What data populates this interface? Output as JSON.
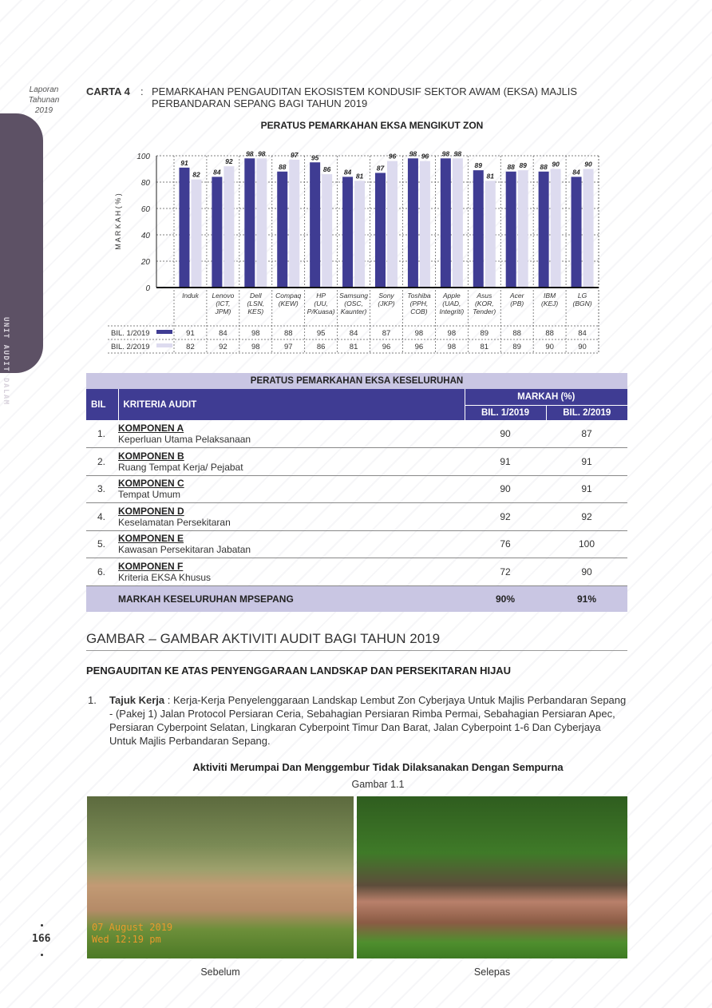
{
  "side": {
    "report_line1": "Laporan",
    "report_line2": "Tahunan",
    "report_year": "2019",
    "tab_label": "UNIT AUDIT DALAM",
    "page_number": "166"
  },
  "heading": {
    "label": "CARTA 4",
    "colon": ":",
    "text": "PEMARKAHAN PENGAUDITAN EKOSISTEM KONDUSIF SEKTOR AWAM (EKSA) MAJLIS PERBANDARAN SEPANG BAGI TAHUN 2019"
  },
  "chart_data": {
    "type": "bar",
    "title": "PERATUS PEMARKAHAN EKSA MENGIKUT ZON",
    "ylabel": "M A R K A H   ( % )",
    "ylim": [
      0,
      100
    ],
    "yticks": [
      0,
      20,
      40,
      60,
      80,
      100
    ],
    "grid": true,
    "categories": [
      [
        "Induk"
      ],
      [
        "Lenovo",
        "(ICT,",
        "JPM)"
      ],
      [
        "Dell",
        "(LSN,",
        "KES)"
      ],
      [
        "Compaq",
        "(KEW)"
      ],
      [
        "HP",
        "(UU,",
        "P/Kuasa)"
      ],
      [
        "Samsung",
        "(OSC,",
        "Kaunter)"
      ],
      [
        "Sony",
        "(JKP)"
      ],
      [
        "Toshiba",
        "(PPH,",
        "COB)"
      ],
      [
        "Apple",
        "(UAD,",
        "Integriti)"
      ],
      [
        "Asus",
        "(KOR,",
        "Tender)"
      ],
      [
        "Acer",
        "(PB)"
      ],
      [
        "IBM",
        "(KEJ)"
      ],
      [
        "LG",
        "(BGN)"
      ]
    ],
    "series": [
      {
        "name": "BIL. 1/2019",
        "color": "#3f3c93",
        "values": [
          91,
          84,
          98,
          88,
          95,
          84,
          87,
          98,
          98,
          89,
          88,
          88,
          84
        ]
      },
      {
        "name": "BIL. 2/2019",
        "color": "#dddbef",
        "values": [
          82,
          92,
          98,
          97,
          86,
          81,
          96,
          96,
          98,
          81,
          89,
          90,
          90
        ]
      }
    ],
    "legend": "data-table-below"
  },
  "table": {
    "band_title": "PERATUS PEMARKAHAN EKSA KESELURUHAN",
    "col_bil": "BIL",
    "col_kriteria": "KRITERIA AUDIT",
    "col_markah": "MARKAH (%)",
    "col_b1": "BIL. 1/2019",
    "col_b2": "BIL. 2/2019",
    "rows": [
      {
        "n": "1.",
        "k": "KOMPONEN A",
        "d": "Keperluan Utama Pelaksanaan",
        "b1": "90",
        "b2": "87"
      },
      {
        "n": "2.",
        "k": "KOMPONEN B",
        "d": "Ruang Tempat Kerja/ Pejabat",
        "b1": "91",
        "b2": "91"
      },
      {
        "n": "3.",
        "k": "KOMPONEN C",
        "d": "Tempat Umum",
        "b1": "90",
        "b2": "91"
      },
      {
        "n": "4.",
        "k": "KOMPONEN D",
        "d": "Keselamatan Persekitaran",
        "b1": "92",
        "b2": "92"
      },
      {
        "n": "5.",
        "k": "KOMPONEN E",
        "d": "Kawasan Persekitaran Jabatan",
        "b1": "76",
        "b2": "100"
      },
      {
        "n": "6.",
        "k": "KOMPONEN F",
        "d": "Kriteria EKSA Khusus",
        "b1": "72",
        "b2": "90"
      }
    ],
    "total": {
      "label": "MARKAH KESELURUHAN MPSEPANG",
      "b1": "90%",
      "b2": "91%"
    },
    "colors": {
      "header": "#3f3c93",
      "band": "#c9c6e3"
    }
  },
  "gallery": {
    "title": "GAMBAR – GAMBAR AKTIVITI AUDIT BAGI TAHUN 2019",
    "subtitle": "PENGAUDITAN KE ATAS PENYENGGARAAN LANDSKAP DAN PERSEKITARAN HIJAU",
    "item_num": "1.",
    "item_label": "Tajuk Kerja",
    "item_text": " : Kerja-Kerja Penyelenggaraan Landskap Lembut Zon Cyberjaya Untuk Majlis Perbandaran Sepang - (Pakej 1) Jalan Protocol Persiaran Ceria, Sebahagian Persiaran Rimba  Permai, Sebahagian Persiaran Apec, Persiaran Cyberpoint Selatan, Lingkaran Cyberpoint Timur Dan Barat, Jalan Cyberpoint 1-6 Dan Cyberjaya Untuk Majlis Perbandaran Sepang.",
    "activity": "Aktiviti Merumpai Dan Menggembur Tidak Dilaksanakan Dengan Sempurna",
    "figure": "Gambar 1.1",
    "photo1_stamp_date": "07 August 2019",
    "photo1_stamp_time": "Wed 12:19 pm",
    "caption_before": "Sebelum",
    "caption_after": "Selepas"
  }
}
